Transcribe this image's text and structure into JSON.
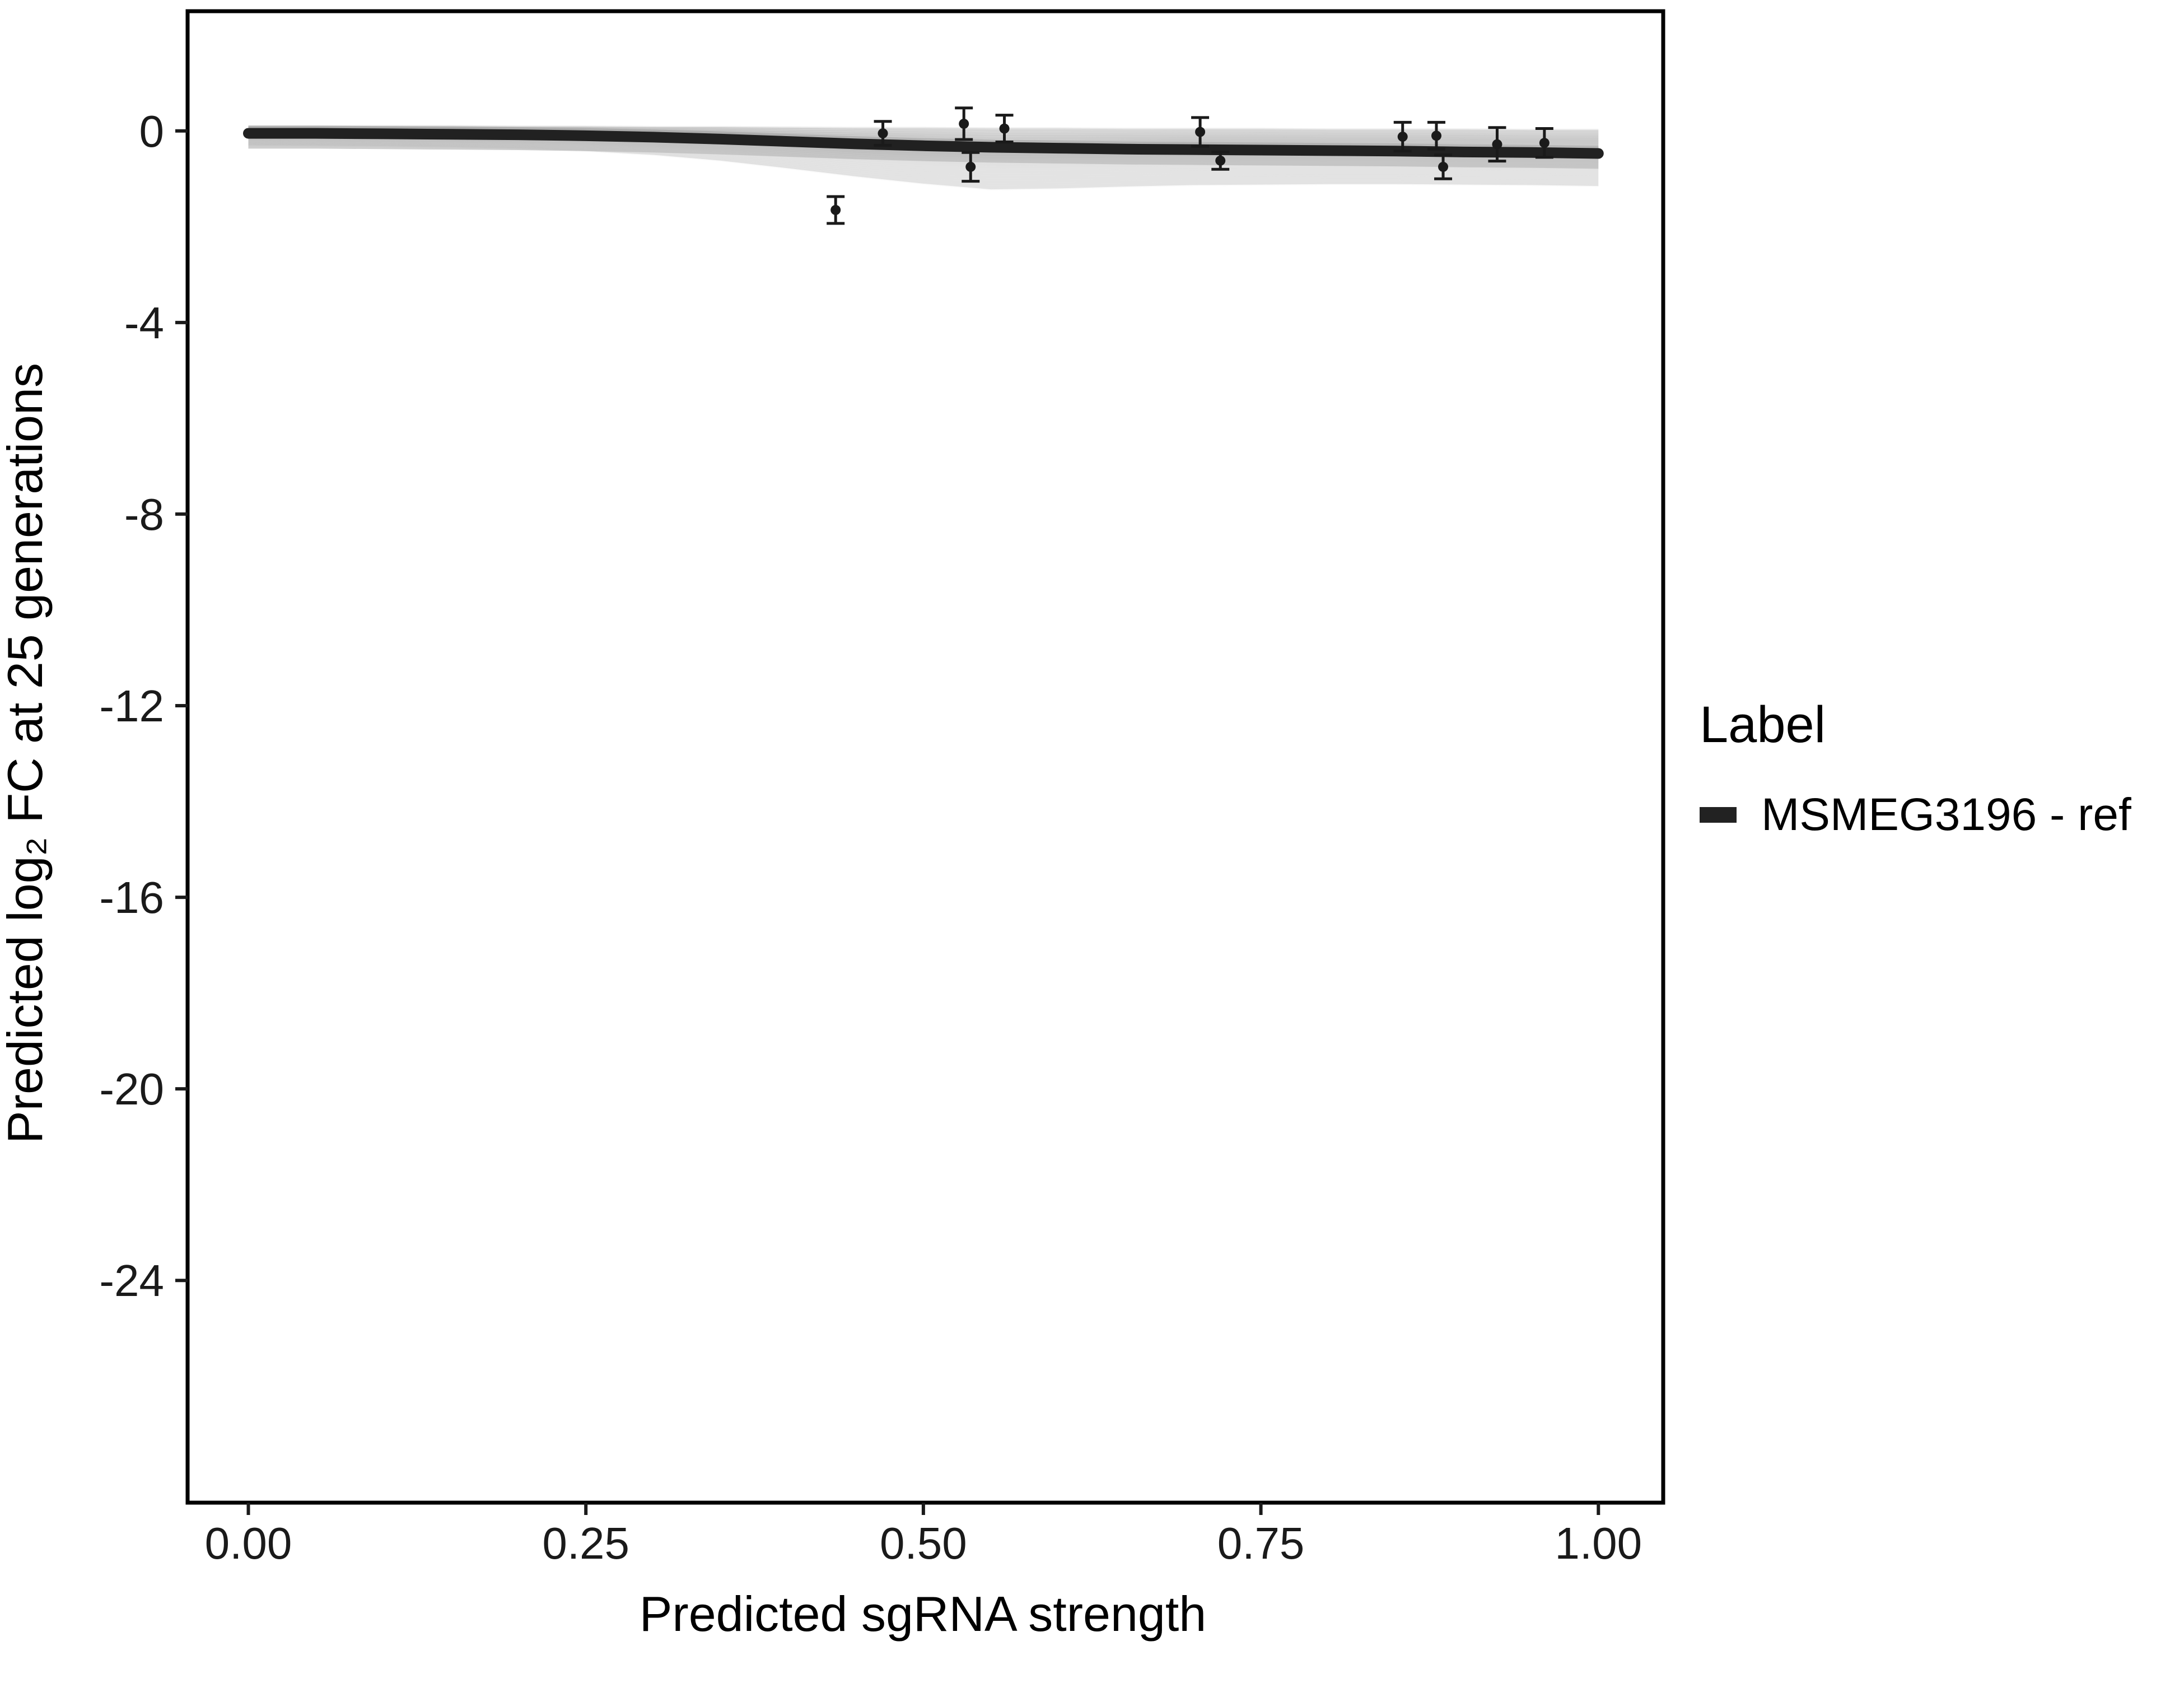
{
  "figure": {
    "x_axis_title": "Predicted sgRNA strength",
    "y_axis_title": "Predicted  log₂ FC at 25 generations"
  },
  "legend": {
    "title": "Label",
    "items": [
      {
        "label": "MSMEG3196 - ref",
        "color": "#222222"
      }
    ]
  },
  "style": {
    "line_color": "#212121",
    "band_outer_color": "#e7e7e7",
    "band_inner_color": "#c2c2c2",
    "point_color": "#1a1a1a",
    "axis_color": "#000000",
    "tick_label_color": "#1a1a1a"
  },
  "chart_data": {
    "type": "line",
    "title": "",
    "xlabel": "Predicted sgRNA strength",
    "ylabel": "Predicted log2 FC at 25 generations",
    "xlim": [
      -0.045,
      1.048
    ],
    "ylim": [
      -28.64,
      2.5
    ],
    "grid": false,
    "legend_position": "right",
    "x_ticks": {
      "values": [
        0,
        0.25,
        0.5,
        0.75,
        1.0
      ],
      "labels": [
        "0.00",
        "0.25",
        "0.50",
        "0.75",
        "1.00"
      ]
    },
    "y_ticks": {
      "values": [
        0,
        -4,
        -8,
        -12,
        -16,
        -20,
        -24
      ],
      "labels": [
        "0",
        "-4",
        "-8",
        "-12",
        "-16",
        "-20",
        "-24"
      ]
    },
    "series": [
      {
        "name": "MSMEG3196 - ref",
        "color": "#212121",
        "x": [
          0,
          0.05,
          0.1,
          0.15,
          0.2,
          0.25,
          0.3,
          0.35,
          0.4,
          0.45,
          0.5,
          0.55,
          0.6,
          0.65,
          0.7,
          0.75,
          0.8,
          0.85,
          0.9,
          0.95,
          1.0
        ],
        "y": [
          -0.05,
          -0.05,
          -0.06,
          -0.07,
          -0.08,
          -0.1,
          -0.13,
          -0.17,
          -0.22,
          -0.27,
          -0.31,
          -0.34,
          -0.36,
          -0.38,
          -0.39,
          -0.4,
          -0.41,
          -0.42,
          -0.44,
          -0.45,
          -0.47
        ]
      }
    ],
    "band": {
      "x": [
        0,
        0.05,
        0.1,
        0.15,
        0.2,
        0.25,
        0.3,
        0.35,
        0.4,
        0.45,
        0.5,
        0.55,
        0.6,
        0.65,
        0.7,
        0.75,
        0.8,
        0.85,
        0.9,
        0.95,
        1.0
      ],
      "upper": [
        0.1,
        0.1,
        0.1,
        0.1,
        0.09,
        0.09,
        0.08,
        0.08,
        0.07,
        0.06,
        0.06,
        0.05,
        0.05,
        0.04,
        0.04,
        0.04,
        0.03,
        0.03,
        0.03,
        0.02,
        0.02
      ],
      "lower": [
        -0.3,
        -0.31,
        -0.32,
        -0.34,
        -0.37,
        -0.42,
        -0.5,
        -0.62,
        -0.78,
        -0.95,
        -1.1,
        -1.22,
        -1.2,
        -1.16,
        -1.13,
        -1.12,
        -1.11,
        -1.11,
        -1.12,
        -1.13,
        -1.15
      ]
    },
    "points": [
      [
        0.435,
        -1.65,
        0.28
      ],
      [
        0.47,
        -0.05,
        0.25
      ],
      [
        0.53,
        0.15,
        0.33
      ],
      [
        0.535,
        -0.75,
        0.3
      ],
      [
        0.56,
        0.05,
        0.28
      ],
      [
        0.705,
        -0.02,
        0.3
      ],
      [
        0.72,
        -0.62,
        0.18
      ],
      [
        0.855,
        -0.12,
        0.3
      ],
      [
        0.88,
        -0.1,
        0.28
      ],
      [
        0.885,
        -0.75,
        0.25
      ],
      [
        0.925,
        -0.28,
        0.35
      ],
      [
        0.96,
        -0.25,
        0.3
      ]
    ]
  }
}
